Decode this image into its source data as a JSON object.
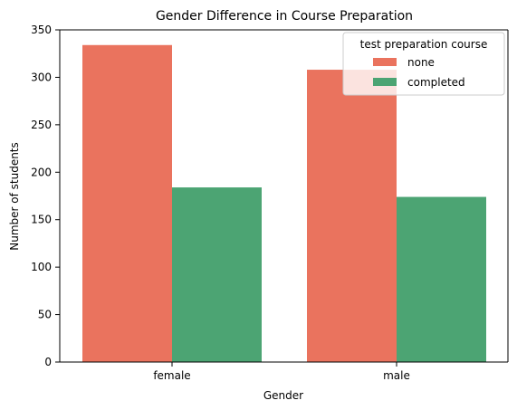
{
  "chart_data": {
    "type": "bar",
    "title": "Gender Difference in Course Preparation",
    "xlabel": "Gender",
    "ylabel": "Number of students",
    "categories": [
      "female",
      "male"
    ],
    "series": [
      {
        "name": "none",
        "values": [
          334,
          308
        ],
        "color": "#ea735e"
      },
      {
        "name": "completed",
        "values": [
          184,
          174
        ],
        "color": "#4ca473"
      }
    ],
    "ylim": [
      0,
      350
    ],
    "yticks": [
      0,
      50,
      100,
      150,
      200,
      250,
      300,
      350
    ],
    "grid": false,
    "legend": {
      "title": "test preparation course",
      "position": "top-right"
    }
  }
}
